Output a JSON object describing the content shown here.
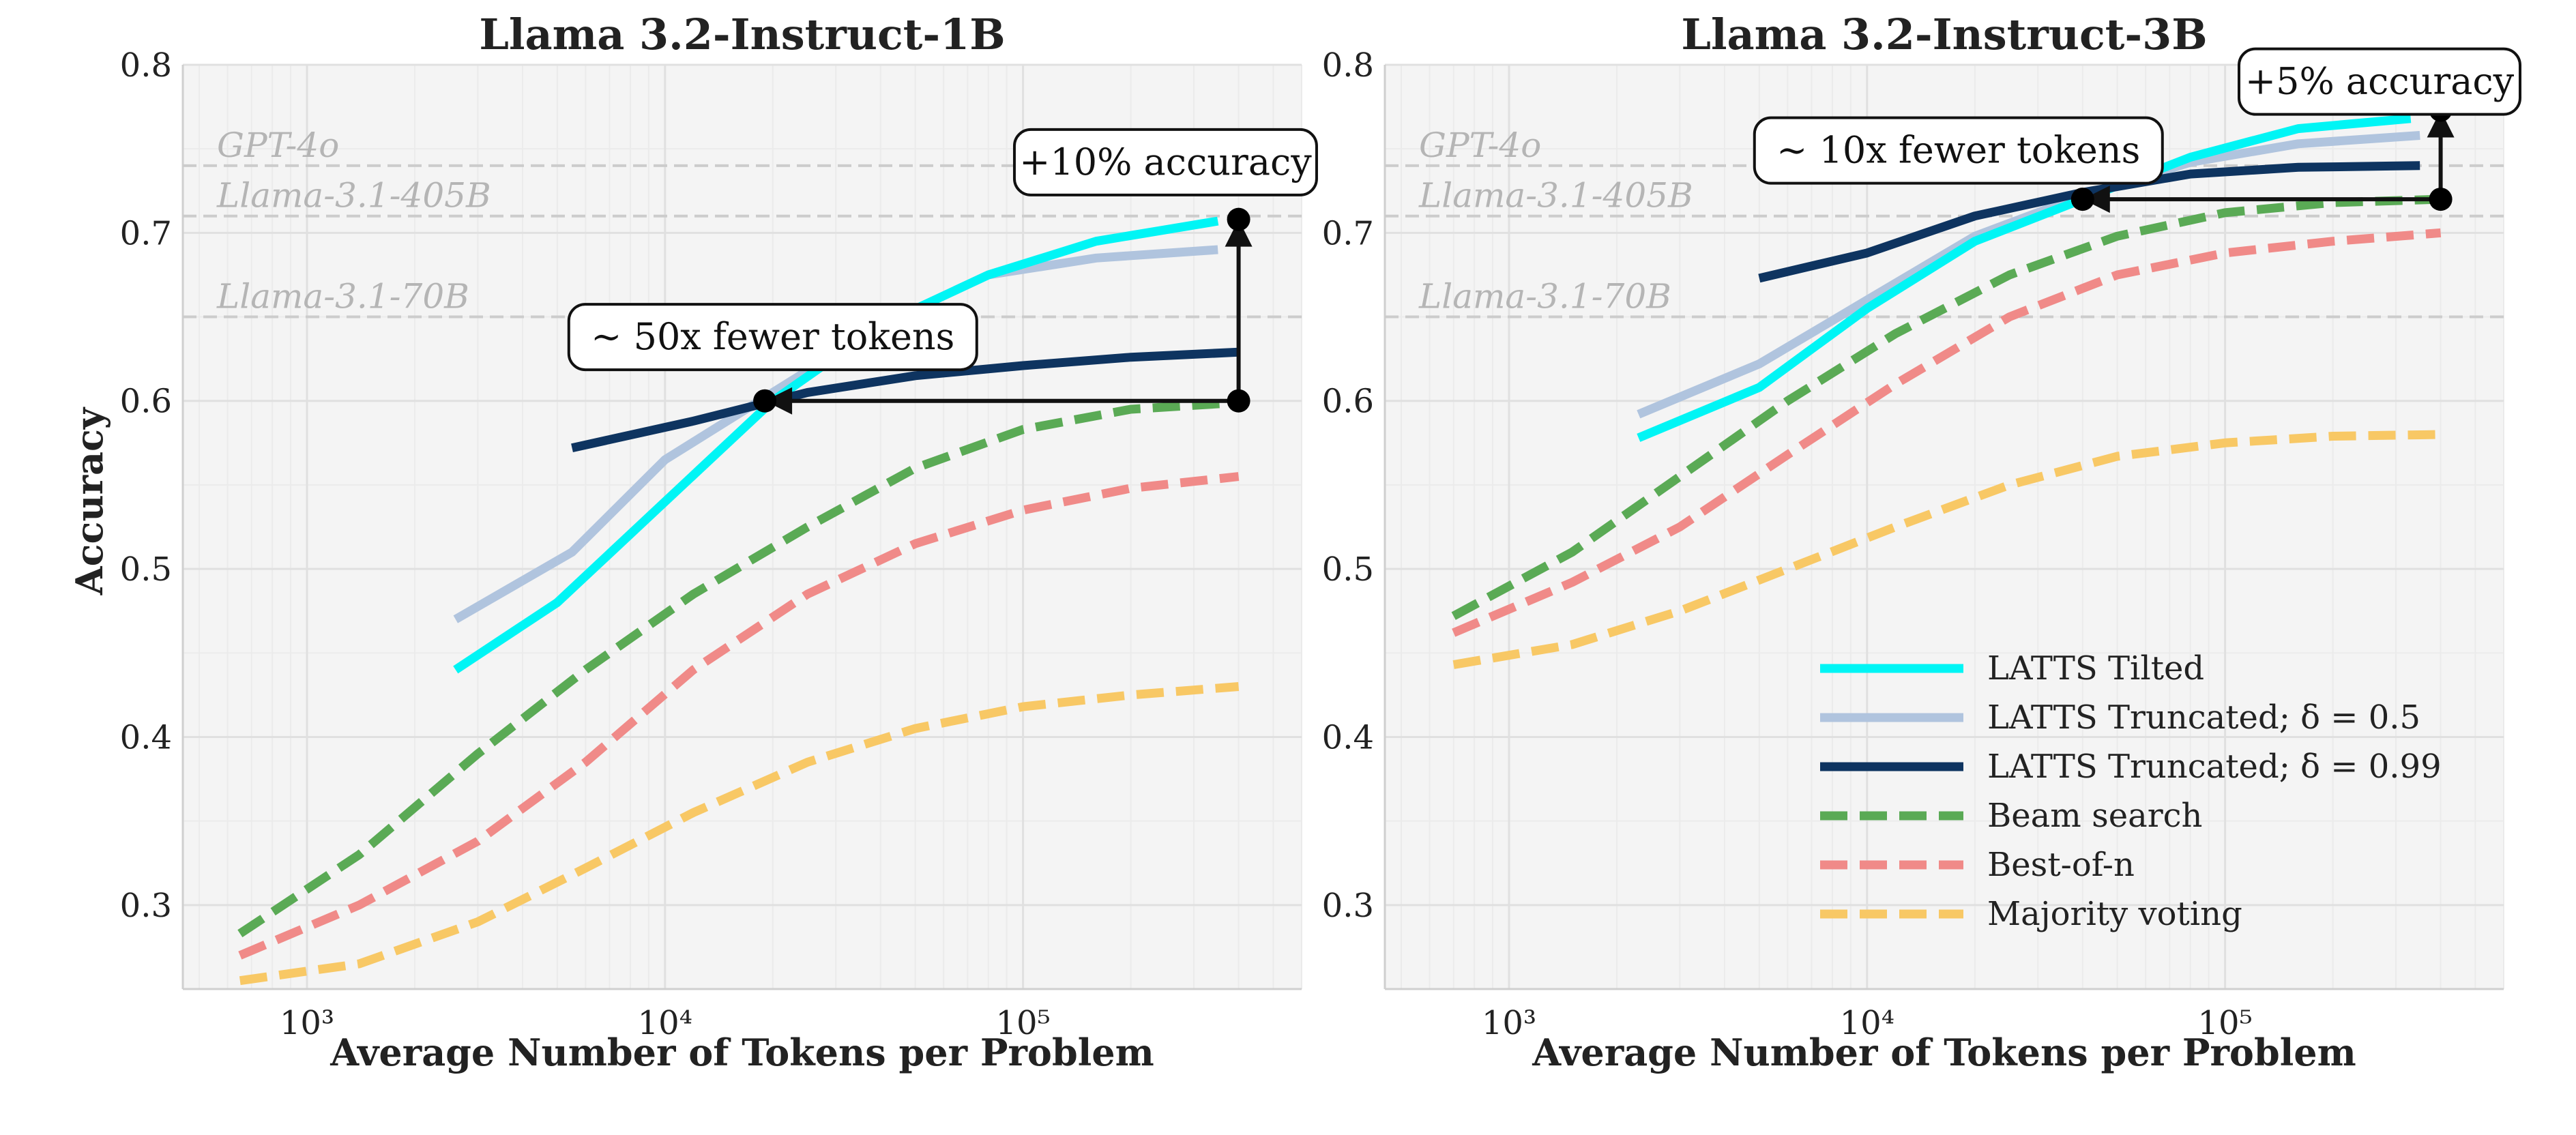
{
  "figure": {
    "ylabel": "Accuracy",
    "xlabel": "Average Number of Tokens per Problem"
  },
  "colors": {
    "LATTS Tilted": "#00f5f5",
    "LATTS Truncated 0.5": "#b0c4de",
    "LATTS Truncated 0.99": "#0e3460",
    "Beam search": "#5aaa55",
    "Best-of-n": "#f08a88",
    "Majority voting": "#f8c865",
    "reference": "#cccccc",
    "panel_bg": "#f4f4f4"
  },
  "legend": {
    "placement": "lower-right of right panel",
    "entries": [
      "LATTS Tilted",
      "LATTS Truncated; δ = 0.5",
      "LATTS Truncated; δ = 0.99",
      "Beam search",
      "Best-of-n",
      "Majority voting"
    ]
  },
  "chart_data": [
    {
      "type": "line",
      "title": "Llama 3.2-Instruct-1B",
      "xlabel": "Average Number of Tokens per Problem",
      "ylabel": "Accuracy",
      "xscale": "log",
      "xlim": [
        450,
        600000
      ],
      "ylim": [
        0.25,
        0.8
      ],
      "xticks": [
        1000,
        10000,
        100000
      ],
      "xtick_labels": [
        "10³",
        "10⁴",
        "10⁵"
      ],
      "yticks": [
        0.3,
        0.4,
        0.5,
        0.6,
        0.7,
        0.8
      ],
      "ytick_labels": [
        "0.3",
        "0.4",
        "0.5",
        "0.6",
        "0.7",
        "0.8"
      ],
      "grid": true,
      "reference_lines": [
        {
          "label": "GPT-4o",
          "y": 0.74
        },
        {
          "label": "Llama-3.1-405B",
          "y": 0.71
        },
        {
          "label": "Llama-3.1-70B",
          "y": 0.65
        }
      ],
      "series": [
        {
          "name": "LATTS Tilted",
          "style": "solid",
          "x": [
            2600,
            5000,
            10000,
            20000,
            40000,
            80000,
            160000,
            350000
          ],
          "y": [
            0.44,
            0.48,
            0.54,
            0.6,
            0.645,
            0.675,
            0.695,
            0.707
          ]
        },
        {
          "name": "LATTS Truncated; δ = 0.5",
          "style": "solid",
          "x": [
            2600,
            5500,
            10000,
            20000,
            40000,
            80000,
            160000,
            350000
          ],
          "y": [
            0.47,
            0.51,
            0.565,
            0.605,
            0.645,
            0.675,
            0.685,
            0.69
          ]
        },
        {
          "name": "LATTS Truncated; δ = 0.99",
          "style": "solid",
          "x": [
            5500,
            12000,
            25000,
            50000,
            100000,
            200000,
            400000
          ],
          "y": [
            0.572,
            0.588,
            0.605,
            0.615,
            0.621,
            0.626,
            0.629
          ]
        },
        {
          "name": "Beam search",
          "style": "dashed",
          "x": [
            650,
            1400,
            3000,
            6000,
            12000,
            25000,
            50000,
            100000,
            200000,
            400000
          ],
          "y": [
            0.283,
            0.33,
            0.39,
            0.44,
            0.485,
            0.525,
            0.56,
            0.583,
            0.595,
            0.599
          ]
        },
        {
          "name": "Best-of-n",
          "style": "dashed",
          "x": [
            650,
            1400,
            3000,
            6000,
            12000,
            25000,
            50000,
            100000,
            200000,
            400000
          ],
          "y": [
            0.27,
            0.3,
            0.338,
            0.385,
            0.44,
            0.485,
            0.515,
            0.535,
            0.548,
            0.555
          ]
        },
        {
          "name": "Majority voting",
          "style": "dashed",
          "x": [
            650,
            1400,
            3000,
            6000,
            12000,
            25000,
            50000,
            100000,
            200000,
            400000
          ],
          "y": [
            0.255,
            0.265,
            0.29,
            0.322,
            0.355,
            0.385,
            0.405,
            0.418,
            0.425,
            0.43
          ]
        }
      ],
      "annotations": {
        "tokens_text": "∼ 50x fewer tokens",
        "accuracy_text": "+10% accuracy",
        "arrow_base": {
          "x": 400000,
          "y": 0.6
        },
        "arrow_tokens_end": {
          "x": 19000,
          "y": 0.6
        },
        "arrow_accuracy_end": {
          "x": 400000,
          "y": 0.708
        },
        "tokens_box_center": {
          "x": 20000,
          "y": 0.638
        },
        "accuracy_box_center": {
          "x": 250000,
          "y": 0.742
        }
      }
    },
    {
      "type": "line",
      "title": "Llama 3.2-Instruct-3B",
      "xlabel": "Average Number of Tokens per Problem",
      "xscale": "log",
      "xlim": [
        450,
        600000
      ],
      "ylim": [
        0.25,
        0.8
      ],
      "xticks": [
        1000,
        10000,
        100000
      ],
      "xtick_labels": [
        "10³",
        "10⁴",
        "10⁵"
      ],
      "yticks": [
        0.3,
        0.4,
        0.5,
        0.6,
        0.7,
        0.8
      ],
      "ytick_labels": [
        "0.3",
        "0.4",
        "0.5",
        "0.6",
        "0.7",
        "0.8"
      ],
      "grid": true,
      "reference_lines": [
        {
          "label": "GPT-4o",
          "y": 0.74
        },
        {
          "label": "Llama-3.1-405B",
          "y": 0.71
        },
        {
          "label": "Llama-3.1-70B",
          "y": 0.65
        }
      ],
      "series": [
        {
          "name": "LATTS Tilted",
          "style": "solid",
          "x": [
            2300,
            5000,
            10000,
            20000,
            40000,
            80000,
            160000,
            330000
          ],
          "y": [
            0.578,
            0.608,
            0.655,
            0.695,
            0.72,
            0.745,
            0.762,
            0.768
          ]
        },
        {
          "name": "LATTS Truncated; δ = 0.5",
          "style": "solid",
          "x": [
            2300,
            5000,
            10000,
            20000,
            40000,
            80000,
            160000,
            350000
          ],
          "y": [
            0.592,
            0.622,
            0.66,
            0.698,
            0.722,
            0.742,
            0.753,
            0.758
          ]
        },
        {
          "name": "LATTS Truncated; δ = 0.99",
          "style": "solid",
          "x": [
            5000,
            10000,
            20000,
            40000,
            80000,
            160000,
            350000
          ],
          "y": [
            0.673,
            0.688,
            0.71,
            0.724,
            0.735,
            0.739,
            0.74
          ]
        },
        {
          "name": "Beam search",
          "style": "dashed",
          "x": [
            700,
            1500,
            3000,
            6000,
            12000,
            25000,
            50000,
            100000,
            200000,
            400000
          ],
          "y": [
            0.472,
            0.51,
            0.555,
            0.6,
            0.64,
            0.675,
            0.698,
            0.712,
            0.718,
            0.72
          ]
        },
        {
          "name": "Best-of-n",
          "style": "dashed",
          "x": [
            700,
            1500,
            3000,
            6000,
            12000,
            25000,
            50000,
            100000,
            200000,
            400000
          ],
          "y": [
            0.462,
            0.492,
            0.525,
            0.568,
            0.61,
            0.65,
            0.675,
            0.688,
            0.695,
            0.7
          ]
        },
        {
          "name": "Majority voting",
          "style": "dashed",
          "x": [
            700,
            1500,
            3000,
            6000,
            12000,
            25000,
            50000,
            100000,
            200000,
            400000
          ],
          "y": [
            0.443,
            0.455,
            0.475,
            0.5,
            0.525,
            0.55,
            0.567,
            0.575,
            0.579,
            0.58
          ]
        }
      ],
      "annotations": {
        "tokens_text": "∼ 10x fewer tokens",
        "accuracy_text": "+5% accuracy",
        "arrow_base": {
          "x": 400000,
          "y": 0.72
        },
        "arrow_tokens_end": {
          "x": 40000,
          "y": 0.72
        },
        "arrow_accuracy_end": {
          "x": 400000,
          "y": 0.773
        },
        "tokens_box_center": {
          "x": 18000,
          "y": 0.749
        },
        "accuracy_box_center": {
          "x": 270000,
          "y": 0.79
        }
      }
    }
  ]
}
